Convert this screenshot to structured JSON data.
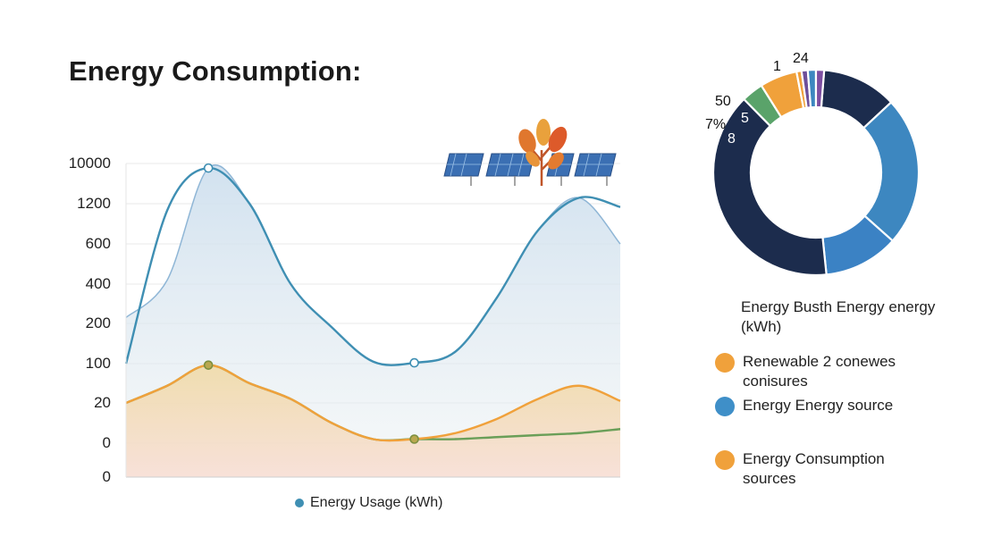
{
  "page": {
    "title": "Energy Consumption:"
  },
  "chart_data": [
    {
      "type": "area",
      "title": "Energy Consumption:",
      "ylabel": "",
      "xlabel": "",
      "ytick_labels": [
        "10000",
        "1200",
        "600",
        "400",
        "200",
        "100",
        "20",
        "0",
        "0"
      ],
      "x": [
        0,
        1,
        2,
        3,
        4,
        5,
        6,
        7,
        8,
        9,
        10,
        11,
        12
      ],
      "series": [
        {
          "name": "Energy Usage (kWh)",
          "color": "#3f8fb3",
          "values": [
            100,
            1100,
            9000,
            1200,
            400,
            190,
            105,
            102,
            130,
            330,
            800,
            2500,
            1150
          ]
        },
        {
          "color": "#8fb6d6",
          "values": [
            230,
            420,
            9000,
            1200,
            400,
            190,
            105,
            102,
            130,
            330,
            800,
            2500,
            600
          ]
        },
        {
          "color": "#f0a13b",
          "values": [
            20,
            55,
            97,
            60,
            28,
            10,
            2,
            2,
            5,
            12,
            28,
            55,
            24
          ]
        },
        {
          "color": "#6a9f58",
          "values": [
            20,
            55,
            97,
            60,
            28,
            10,
            2,
            2,
            2,
            3,
            4,
            5,
            7
          ]
        }
      ],
      "markers": [
        {
          "series": 0,
          "x": 2
        },
        {
          "series": 2,
          "x": 2
        },
        {
          "series": 0,
          "x": 7
        },
        {
          "series": 2,
          "x": 7
        }
      ],
      "legend": [
        "Energy Usage (kWh)"
      ],
      "grid": true
    },
    {
      "type": "pie",
      "donut": true,
      "slice_labels": [
        "1",
        "24",
        "50",
        "7%",
        "5",
        "8"
      ],
      "slices": [
        {
          "value": 12,
          "color": "#1c2c4d"
        },
        {
          "value": 24,
          "color": "#3d87c0"
        },
        {
          "value": 12,
          "color": "#3b82c4"
        },
        {
          "value": 40,
          "color": "#1c2c4d"
        },
        {
          "value": 3.5,
          "color": "#5aa36a"
        },
        {
          "value": 6,
          "color": "#f0a13b"
        },
        {
          "value": 0.8,
          "color": "#f0a13b"
        },
        {
          "value": 1,
          "color": "#6e4f9a"
        },
        {
          "value": 1.3,
          "color": "#3d87c0"
        },
        {
          "value": 1.3,
          "color": "#7d4ea1"
        }
      ]
    }
  ],
  "legend_right": {
    "title": "Energy Busth Energy energy (kWh)",
    "items": [
      {
        "label": "Renewable 2 conewes conisures",
        "color": "#f0a13b"
      },
      {
        "label": "Energy Energy source",
        "color": "#3f8fb3"
      },
      {
        "label": "Energy Consumption sources",
        "color": "#f0a13b"
      }
    ]
  },
  "icons": [
    "solar-panel-icon",
    "tree-icon"
  ]
}
